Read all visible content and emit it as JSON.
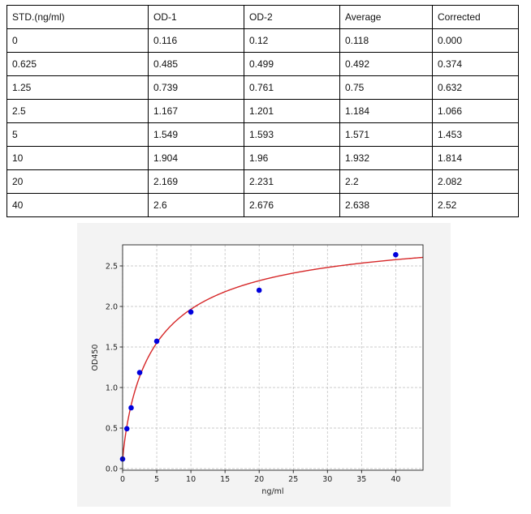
{
  "table": {
    "headers": [
      "STD.(ng/ml)",
      "OD-1",
      "OD-2",
      "Average",
      "Corrected"
    ],
    "rows": [
      [
        "0",
        "0.116",
        "0.12",
        "0.118",
        "0.000"
      ],
      [
        "0.625",
        "0.485",
        "0.499",
        "0.492",
        "0.374"
      ],
      [
        "1.25",
        "0.739",
        "0.761",
        "0.75",
        "0.632"
      ],
      [
        "2.5",
        "1.167",
        "1.201",
        "1.184",
        "1.066"
      ],
      [
        "5",
        "1.549",
        "1.593",
        "1.571",
        "1.453"
      ],
      [
        "10",
        "1.904",
        "1.96",
        "1.932",
        "1.814"
      ],
      [
        "20",
        "2.169",
        "2.231",
        "2.2",
        "2.082"
      ],
      [
        "40",
        "2.6",
        "2.676",
        "2.638",
        "2.52"
      ]
    ]
  },
  "chart_data": {
    "type": "scatter",
    "title": "",
    "xlabel": "ng/ml",
    "ylabel": "OD450",
    "xlim": [
      0,
      44
    ],
    "ylim": [
      -0.02,
      2.76
    ],
    "xticks": [
      "0",
      "5",
      "10",
      "15",
      "20",
      "25",
      "30",
      "35",
      "40"
    ],
    "yticks": [
      "0.0",
      "0.5",
      "1.0",
      "1.5",
      "2.0",
      "2.5"
    ],
    "grid": true,
    "points": {
      "x": [
        0,
        0.625,
        1.25,
        2.5,
        5,
        10,
        20,
        40
      ],
      "y": [
        0.118,
        0.492,
        0.75,
        1.184,
        1.571,
        1.932,
        2.2,
        2.638
      ],
      "color": "#0000dd"
    },
    "fit_curve": {
      "model": "4PL",
      "a": 0.1,
      "b": 0.85,
      "c": 5,
      "d": 3.0,
      "color": "#d62728"
    }
  }
}
